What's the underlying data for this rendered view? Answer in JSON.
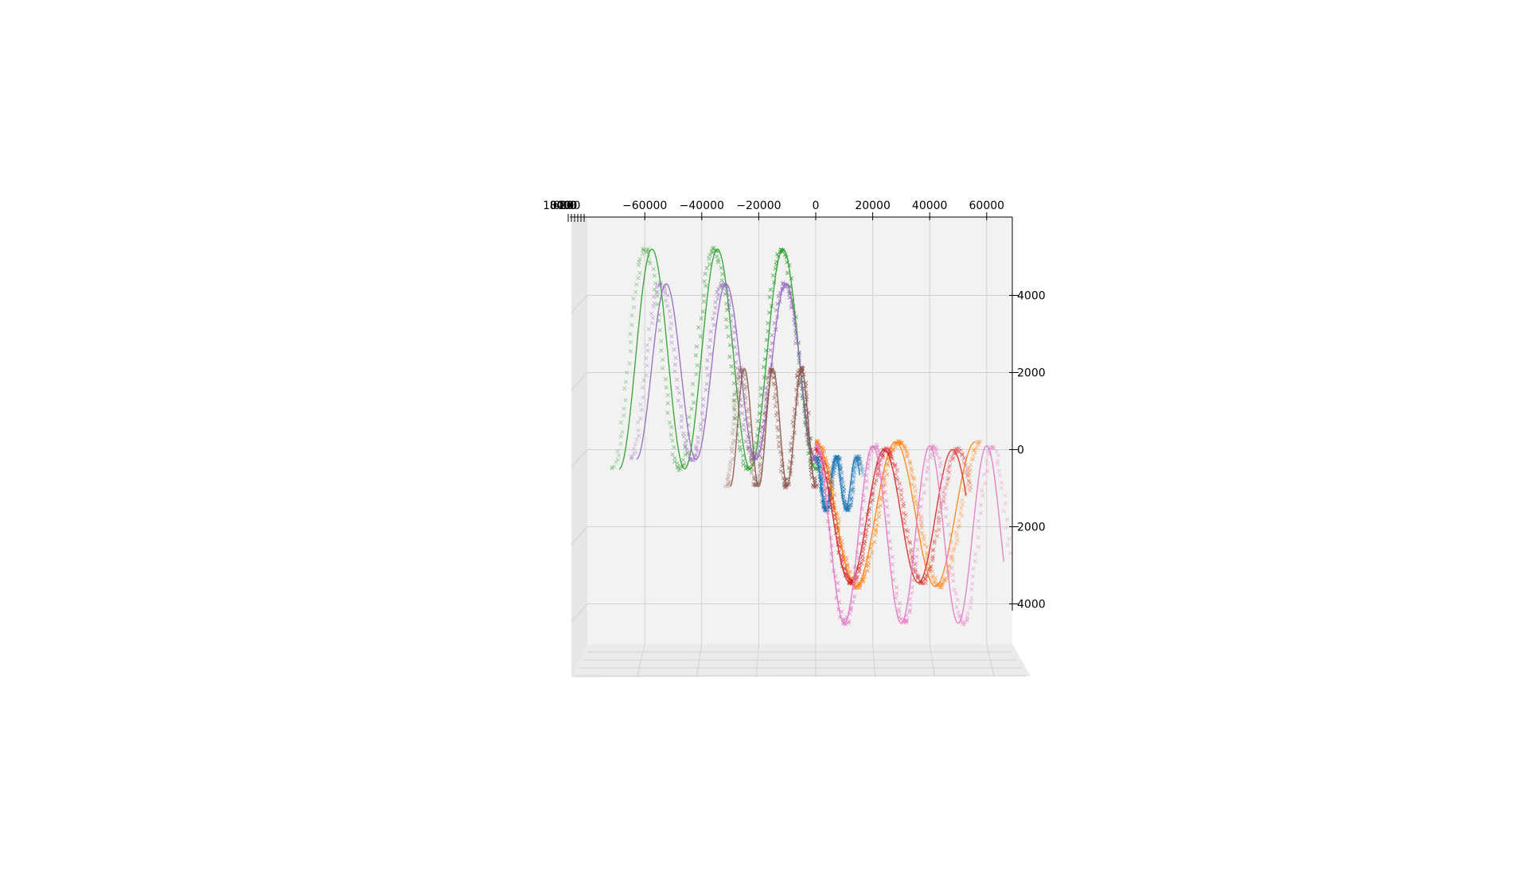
{
  "chart_data": {
    "type": "scatter",
    "projection": "3d",
    "title": "",
    "xlabel": "",
    "ylabel": "",
    "zlabel": "",
    "grid": true,
    "marker": "x",
    "xlim": [
      -75000,
      70000
    ],
    "zlim": [
      -5300,
      6000
    ],
    "x_ticks": [
      -60000,
      -40000,
      -20000,
      0,
      20000,
      40000,
      60000
    ],
    "x_tick_labels": [
      "−60000",
      "−40000",
      "−20000",
      "0",
      "20000",
      "40000",
      "60000"
    ],
    "z_ticks": [
      4000,
      2000,
      0,
      -2000,
      -4000
    ],
    "z_tick_labels": [
      "4000",
      "2000",
      "0",
      "2000",
      "4000"
    ],
    "depth_tick_labels": [
      "1000",
      "800",
      "600",
      "400",
      "200",
      "0"
    ],
    "series": [
      {
        "color": "#1f77b4",
        "x0": 0,
        "period": 7000,
        "cycles": 2.2,
        "top": -200,
        "bottom": -1550,
        "dir": "down",
        "marker_noise": 900
      },
      {
        "color": "#ff7f0e",
        "x0": 0,
        "period": 28000,
        "cycles": 2.0,
        "top": 200,
        "bottom": -3550,
        "dir": "down",
        "marker_noise": 2200
      },
      {
        "color": "#2ca02c",
        "x0": 0,
        "period": -23000,
        "cycles": 3.0,
        "top": 5200,
        "bottom": -500,
        "dir": "up",
        "marker_noise": 2600
      },
      {
        "color": "#d62728",
        "x0": 0,
        "period": 24000,
        "cycles": 2.2,
        "top": 0,
        "bottom": -3450,
        "dir": "down",
        "marker_noise": 2000
      },
      {
        "color": "#9467bd",
        "x0": 0,
        "period": -21000,
        "cycles": 3.0,
        "top": 4300,
        "bottom": -250,
        "dir": "up",
        "marker_noise": 2200
      },
      {
        "color": "#8c564b",
        "x0": 0,
        "period": -10000,
        "cycles": 3.0,
        "top": 2100,
        "bottom": -950,
        "dir": "up",
        "marker_noise": 1400
      },
      {
        "color": "#e377c2",
        "x0": 0,
        "period": 20000,
        "cycles": 3.3,
        "top": 100,
        "bottom": -4500,
        "dir": "down",
        "marker_noise": 2400
      }
    ]
  }
}
